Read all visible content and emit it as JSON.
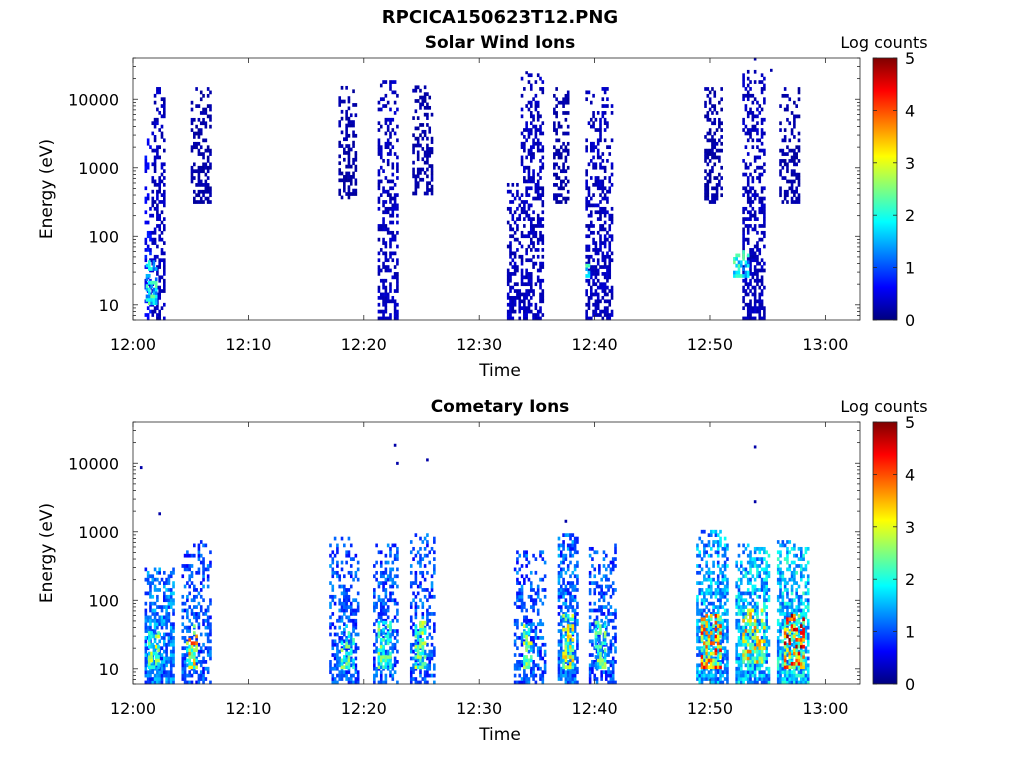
{
  "figure": {
    "title": "RPCICA150623T12.PNG"
  },
  "colormap": {
    "stops": [
      "#00007f",
      "#0000ff",
      "#007fff",
      "#00ffff",
      "#7fff7f",
      "#ffff00",
      "#ff7f00",
      "#ff0000",
      "#7f0000"
    ]
  },
  "chart_data": [
    {
      "type": "heatmap",
      "title": "Solar Wind Ions",
      "xlabel": "Time",
      "ylabel": "Energy (eV)",
      "x_ticks": [
        "12:00",
        "12:10",
        "12:20",
        "12:30",
        "12:40",
        "12:50",
        "13:00"
      ],
      "xlim_minutes": [
        0,
        63
      ],
      "y_ticks": [
        10,
        100,
        1000,
        10000
      ],
      "ylim": [
        6,
        40000
      ],
      "y_scale": "log",
      "colorbar": {
        "label": "Log counts",
        "range": [
          0,
          5
        ],
        "ticks": [
          0,
          1,
          2,
          3,
          4,
          5
        ]
      },
      "bursts": [
        {
          "t_start": 1.0,
          "t_end": 1.5,
          "e_low": 6,
          "e_high": 2500,
          "level": 0.6
        },
        {
          "t_start": 1.6,
          "t_end": 2.8,
          "e_low": 6,
          "e_high": 15000,
          "level": 0.3
        },
        {
          "t_start": 1.1,
          "t_end": 2.1,
          "e_low": 10,
          "e_high": 45,
          "level": 1.8
        },
        {
          "t_start": 5.0,
          "t_end": 6.8,
          "e_low": 300,
          "e_high": 15000,
          "level": 0.2
        },
        {
          "t_start": 17.8,
          "t_end": 19.2,
          "e_low": 350,
          "e_high": 15000,
          "level": 0.2
        },
        {
          "t_start": 21.2,
          "t_end": 22.8,
          "e_low": 6,
          "e_high": 18000,
          "level": 0.3
        },
        {
          "t_start": 24.2,
          "t_end": 25.8,
          "e_low": 400,
          "e_high": 15000,
          "level": 0.2
        },
        {
          "t_start": 32.4,
          "t_end": 33.6,
          "e_low": 6,
          "e_high": 600,
          "level": 0.3
        },
        {
          "t_start": 33.6,
          "t_end": 35.6,
          "e_low": 6,
          "e_high": 22000,
          "level": 0.3
        },
        {
          "t_start": 36.4,
          "t_end": 37.8,
          "e_low": 300,
          "e_high": 15000,
          "level": 0.2
        },
        {
          "t_start": 39.2,
          "t_end": 41.5,
          "e_low": 6,
          "e_high": 15000,
          "level": 0.3
        },
        {
          "t_start": 39.0,
          "t_end": 39.5,
          "e_low": 25,
          "e_high": 45,
          "level": 1.8
        },
        {
          "t_start": 49.5,
          "t_end": 51.0,
          "e_low": 300,
          "e_high": 15000,
          "level": 0.2
        },
        {
          "t_start": 52.8,
          "t_end": 54.8,
          "e_low": 6,
          "e_high": 25000,
          "level": 0.3
        },
        {
          "t_start": 52.0,
          "t_end": 53.4,
          "e_low": 25,
          "e_high": 60,
          "level": 1.9
        },
        {
          "t_start": 56.0,
          "t_end": 57.8,
          "e_low": 300,
          "e_high": 15000,
          "level": 0.2
        }
      ],
      "outliers": [
        {
          "t": 53.8,
          "e": 38000,
          "level": 0.2
        },
        {
          "t": 34.0,
          "e": 24000,
          "level": 0.2
        },
        {
          "t": 55.2,
          "e": 26000,
          "level": 0.2
        }
      ]
    },
    {
      "type": "heatmap",
      "title": "Cometary Ions",
      "xlabel": "Time",
      "ylabel": "Energy (eV)",
      "x_ticks": [
        "12:00",
        "12:10",
        "12:20",
        "12:30",
        "12:40",
        "12:50",
        "13:00"
      ],
      "xlim_minutes": [
        0,
        63
      ],
      "y_ticks": [
        10,
        100,
        1000,
        10000
      ],
      "ylim": [
        6,
        40000
      ],
      "y_scale": "log",
      "colorbar": {
        "label": "Log counts",
        "range": [
          0,
          5
        ],
        "ticks": [
          0,
          1,
          2,
          3,
          4,
          5
        ]
      },
      "bursts": [
        {
          "t_start": 1.0,
          "t_end": 3.6,
          "e_low": 6,
          "e_high": 300,
          "level": 1.2
        },
        {
          "t_start": 1.3,
          "t_end": 2.3,
          "e_low": 10,
          "e_high": 40,
          "level": 2.3
        },
        {
          "t_start": 4.2,
          "t_end": 6.8,
          "e_low": 6,
          "e_high": 700,
          "level": 1.0
        },
        {
          "t_start": 4.6,
          "t_end": 5.6,
          "e_low": 10,
          "e_high": 40,
          "level": 3.0
        },
        {
          "t_start": 17.0,
          "t_end": 19.5,
          "e_low": 6,
          "e_high": 800,
          "level": 1.0
        },
        {
          "t_start": 18.0,
          "t_end": 19.0,
          "e_low": 10,
          "e_high": 40,
          "level": 2.0
        },
        {
          "t_start": 20.8,
          "t_end": 22.8,
          "e_low": 6,
          "e_high": 600,
          "level": 1.0
        },
        {
          "t_start": 21.2,
          "t_end": 22.2,
          "e_low": 10,
          "e_high": 50,
          "level": 2.0
        },
        {
          "t_start": 24.0,
          "t_end": 26.0,
          "e_low": 6,
          "e_high": 900,
          "level": 1.0
        },
        {
          "t_start": 24.4,
          "t_end": 25.2,
          "e_low": 10,
          "e_high": 50,
          "level": 2.2
        },
        {
          "t_start": 33.0,
          "t_end": 35.8,
          "e_low": 6,
          "e_high": 500,
          "level": 1.0
        },
        {
          "t_start": 33.8,
          "t_end": 34.6,
          "e_low": 10,
          "e_high": 40,
          "level": 2.2
        },
        {
          "t_start": 36.8,
          "t_end": 38.6,
          "e_low": 6,
          "e_high": 900,
          "level": 1.1
        },
        {
          "t_start": 37.2,
          "t_end": 38.2,
          "e_low": 10,
          "e_high": 60,
          "level": 2.5
        },
        {
          "t_start": 39.5,
          "t_end": 41.8,
          "e_low": 6,
          "e_high": 600,
          "level": 1.0
        },
        {
          "t_start": 40.0,
          "t_end": 41.0,
          "e_low": 10,
          "e_high": 50,
          "level": 2.0
        },
        {
          "t_start": 48.8,
          "t_end": 51.6,
          "e_low": 6,
          "e_high": 1000,
          "level": 1.4
        },
        {
          "t_start": 49.2,
          "t_end": 51.0,
          "e_low": 10,
          "e_high": 60,
          "level": 3.2
        },
        {
          "t_start": 52.2,
          "t_end": 55.2,
          "e_low": 6,
          "e_high": 600,
          "level": 1.5
        },
        {
          "t_start": 52.8,
          "t_end": 54.8,
          "e_low": 12,
          "e_high": 70,
          "level": 2.8
        },
        {
          "t_start": 55.8,
          "t_end": 58.6,
          "e_low": 6,
          "e_high": 700,
          "level": 1.6
        },
        {
          "t_start": 56.4,
          "t_end": 58.2,
          "e_low": 10,
          "e_high": 60,
          "level": 3.5
        }
      ],
      "outliers": [
        {
          "t": 0.6,
          "e": 8500,
          "level": 0.2
        },
        {
          "t": 2.2,
          "e": 1800,
          "level": 0.2
        },
        {
          "t": 22.6,
          "e": 18000,
          "level": 0.2
        },
        {
          "t": 22.8,
          "e": 9800,
          "level": 0.2
        },
        {
          "t": 25.4,
          "e": 11000,
          "level": 0.2
        },
        {
          "t": 37.4,
          "e": 1400,
          "level": 0.2
        },
        {
          "t": 53.8,
          "e": 17000,
          "level": 0.2
        },
        {
          "t": 53.8,
          "e": 2700,
          "level": 0.2
        }
      ]
    }
  ]
}
